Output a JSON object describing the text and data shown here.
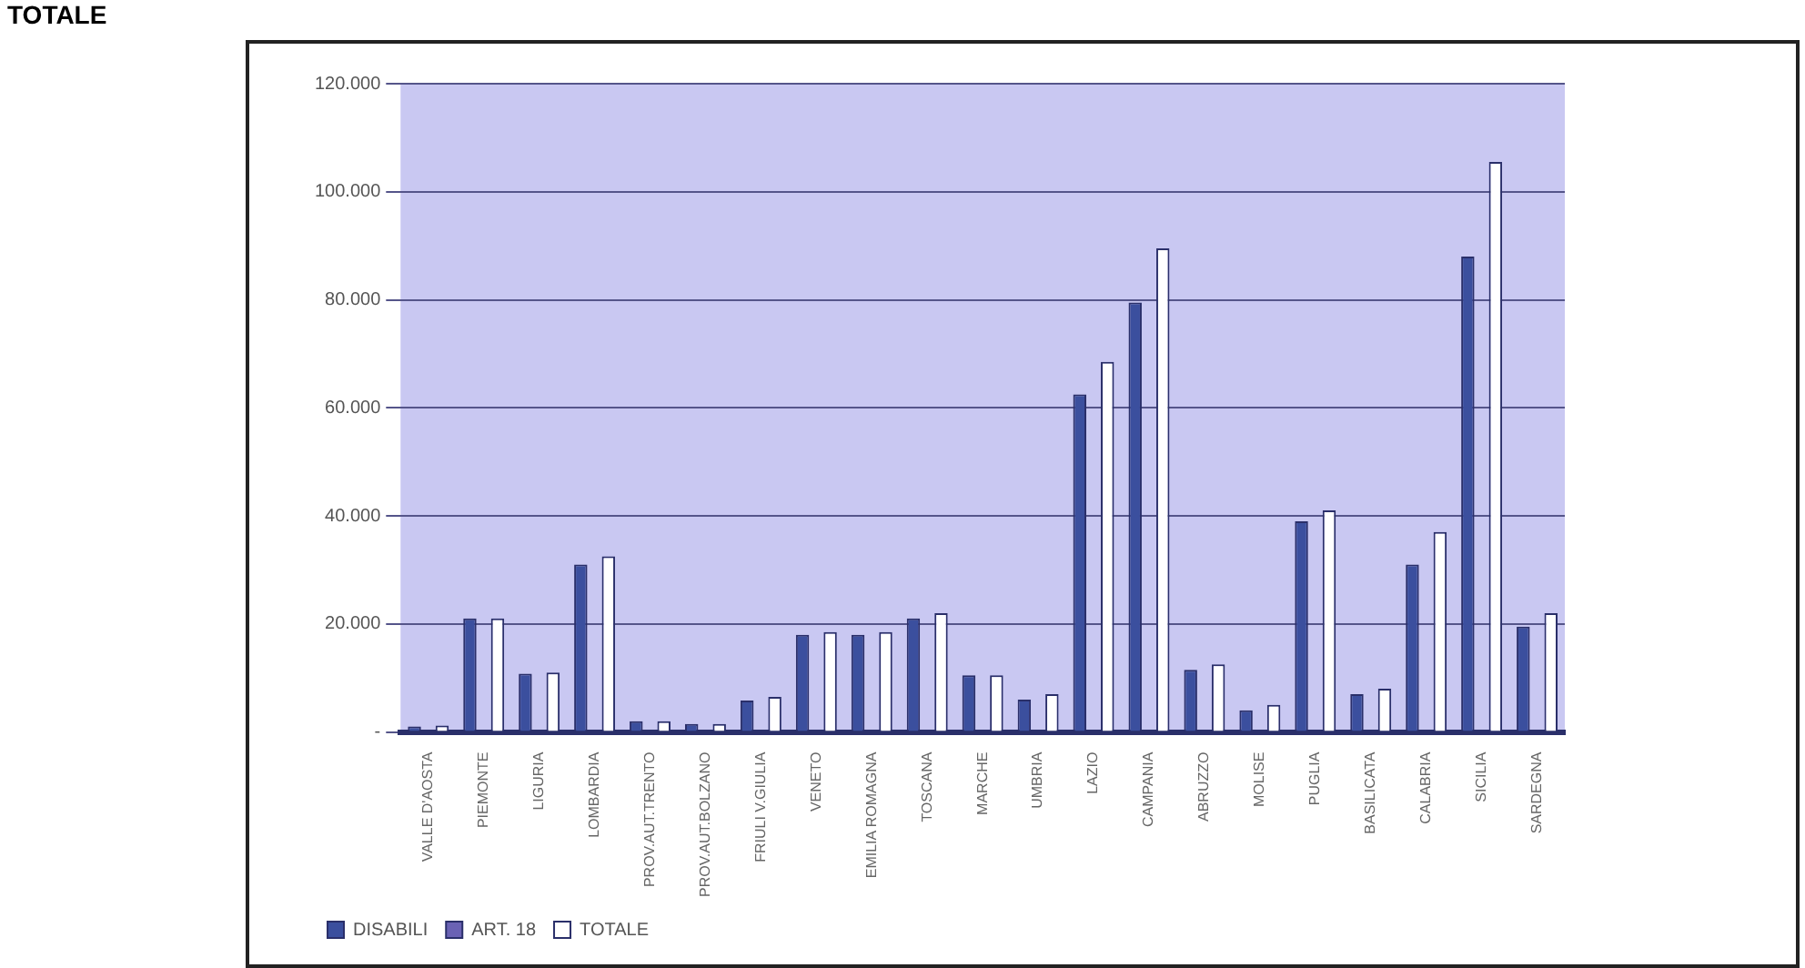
{
  "chart_data": {
    "type": "bar",
    "categories": [
      "VALLE D'AOSTA",
      "PIEMONTE",
      "LIGURIA",
      "LOMBARDIA",
      "PROV.AUT.TRENTO",
      "PROV.AUT.BOLZANO",
      "FRIULI V.GIULIA",
      "VENETO",
      "EMILIA ROMAGNA",
      "TOSCANA",
      "MARCHE",
      "UMBRIA",
      "LAZIO",
      "CAMPANIA",
      "ABRUZZO",
      "MOLISE",
      "PUGLIA",
      "BASILICATA",
      "CALABRIA",
      "SICILIA",
      "SARDEGNA"
    ],
    "series": [
      {
        "name": "DISABILI",
        "color": "#3b4f9e",
        "values": [
          1000,
          21000,
          10800,
          31000,
          2000,
          1500,
          5800,
          18000,
          18000,
          21000,
          10500,
          6000,
          62500,
          79500,
          11500,
          4000,
          39000,
          7000,
          31000,
          88000,
          19500
        ]
      },
      {
        "name": "ART. 18",
        "color": "#6a62b4",
        "values": [
          null,
          null,
          null,
          null,
          null,
          null,
          null,
          null,
          null,
          null,
          null,
          null,
          null,
          null,
          null,
          null,
          null,
          null,
          null,
          null,
          null
        ]
      },
      {
        "name": "TOTALE",
        "color": "#ffffff",
        "values": [
          1200,
          21000,
          11000,
          32500,
          2000,
          1500,
          6500,
          18500,
          18500,
          22000,
          10500,
          7000,
          68500,
          89500,
          12500,
          5000,
          41000,
          8000,
          37000,
          105500,
          22000
        ]
      }
    ],
    "ylim": [
      0,
      120000
    ],
    "yticks": [
      {
        "value": 0,
        "label": "-"
      },
      {
        "value": 20000,
        "label": "20.000"
      },
      {
        "value": 40000,
        "label": "40.000"
      },
      {
        "value": 60000,
        "label": "60.000"
      },
      {
        "value": 80000,
        "label": "80.000"
      },
      {
        "value": 100000,
        "label": "100.000"
      },
      {
        "value": 120000,
        "label": "120.000"
      }
    ],
    "grid": "y",
    "legend": "bottom left",
    "annotations": [
      "TOTALE"
    ]
  }
}
